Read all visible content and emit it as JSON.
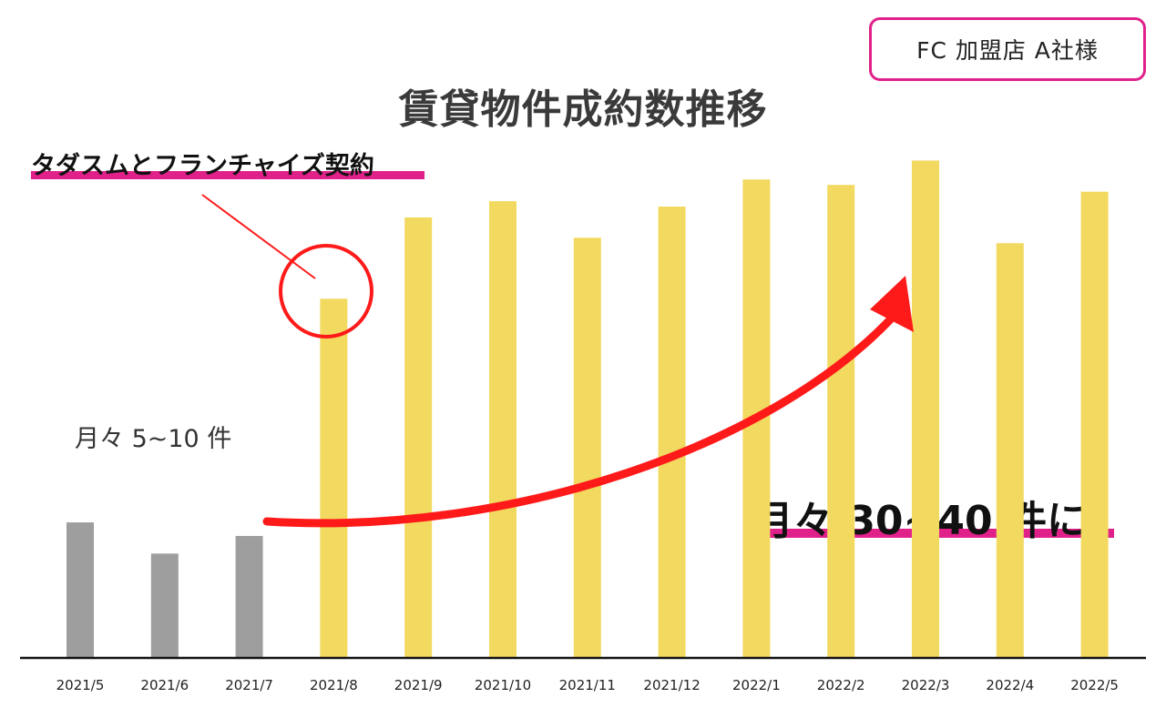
{
  "client_label": "FC 加盟店 A社様",
  "annotations": {
    "franchise_contract": "タダスムとフランチャイズ契約",
    "before_range": "月々 5~10 件",
    "after_range": "月々 30~40 件に"
  },
  "colors": {
    "before_bar": "#9e9e9e",
    "after_bar": "#f2d95f",
    "accent": "#e0218a",
    "arrow": "#ff1a1a"
  },
  "chart_data": {
    "type": "bar",
    "title": "賃貸物件成約数推移",
    "xlabel": "",
    "ylabel": "",
    "categories": [
      "2021/5",
      "2021/6",
      "2021/7",
      "2021/8",
      "2021/9",
      "2021/10",
      "2021/11",
      "2021/12",
      "2022/1",
      "2022/2",
      "2022/3",
      "2022/4",
      "2022/5"
    ],
    "values": [
      10,
      7.7,
      9,
      26.5,
      32.5,
      33.7,
      31,
      33.3,
      35.3,
      34.9,
      36.7,
      30.6,
      34.4
    ],
    "ylim": [
      0,
      47
    ],
    "grid": false,
    "highlight_category": "2021/8",
    "before_count": 3
  }
}
